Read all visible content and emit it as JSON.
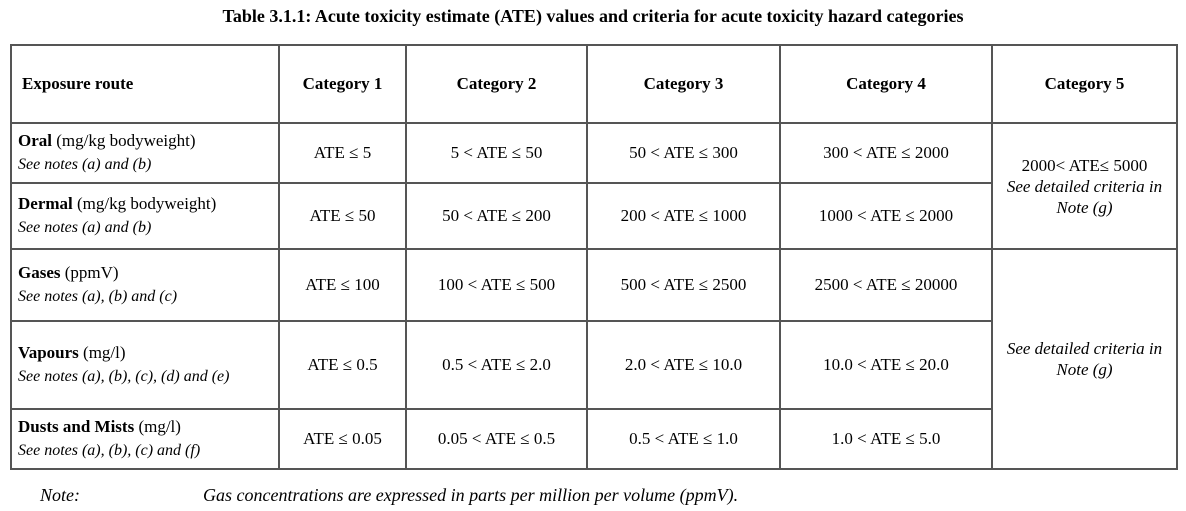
{
  "caption": "Table 3.1.1: Acute toxicity estimate (ATE) values and criteria for acute toxicity hazard categories",
  "headers": [
    "Exposure route",
    "Category 1",
    "Category 2",
    "Category 3",
    "Category 4",
    "Category 5"
  ],
  "rows": [
    {
      "route": "Oral",
      "unit": " (mg/kg bodyweight)",
      "notes": "See notes (a) and (b)",
      "values": [
        "ATE ≤ 5",
        "5 < ATE ≤ 50",
        "50 < ATE ≤ 300",
        "300 < ATE ≤ 2000"
      ]
    },
    {
      "route": "Dermal",
      "unit": " (mg/kg bodyweight)",
      "notes": "See notes (a) and (b)",
      "values": [
        "ATE ≤ 50",
        "50 < ATE ≤ 200",
        "200 < ATE ≤ 1000",
        "1000 < ATE ≤ 2000"
      ]
    },
    {
      "route": "Gases",
      "unit": " (ppmV)",
      "notes": "See notes (a), (b) and (c)",
      "values": [
        "ATE ≤ 100",
        "100 < ATE ≤ 500",
        "500 < ATE ≤ 2500",
        "2500 < ATE ≤ 20000"
      ]
    },
    {
      "route": "Vapours",
      "unit": " (mg/l)",
      "notes": "See notes (a), (b), (c), (d) and (e)",
      "values": [
        "ATE ≤ 0.5",
        "0.5 < ATE ≤ 2.0",
        "2.0 < ATE ≤ 10.0",
        "10.0 < ATE ≤ 20.0"
      ]
    },
    {
      "route": "Dusts and Mists",
      "unit": " (mg/l)",
      "notes": "See notes (a), (b), (c) and (f)",
      "values": [
        "ATE  ≤ 0.05",
        "0.05 < ATE ≤ 0.5",
        "0.5 < ATE ≤ 1.0",
        "1.0 < ATE ≤ 5.0"
      ]
    }
  ],
  "category5": {
    "oral_dermal_value": "2000< ATE≤ 5000",
    "oral_dermal_criteria": "See detailed criteria in Note (g)",
    "inhalation_criteria": "See detailed criteria in Note (g)"
  },
  "note": {
    "label": "Note:",
    "text": "Gas concentrations are expressed in parts per million per volume (ppmV)."
  }
}
